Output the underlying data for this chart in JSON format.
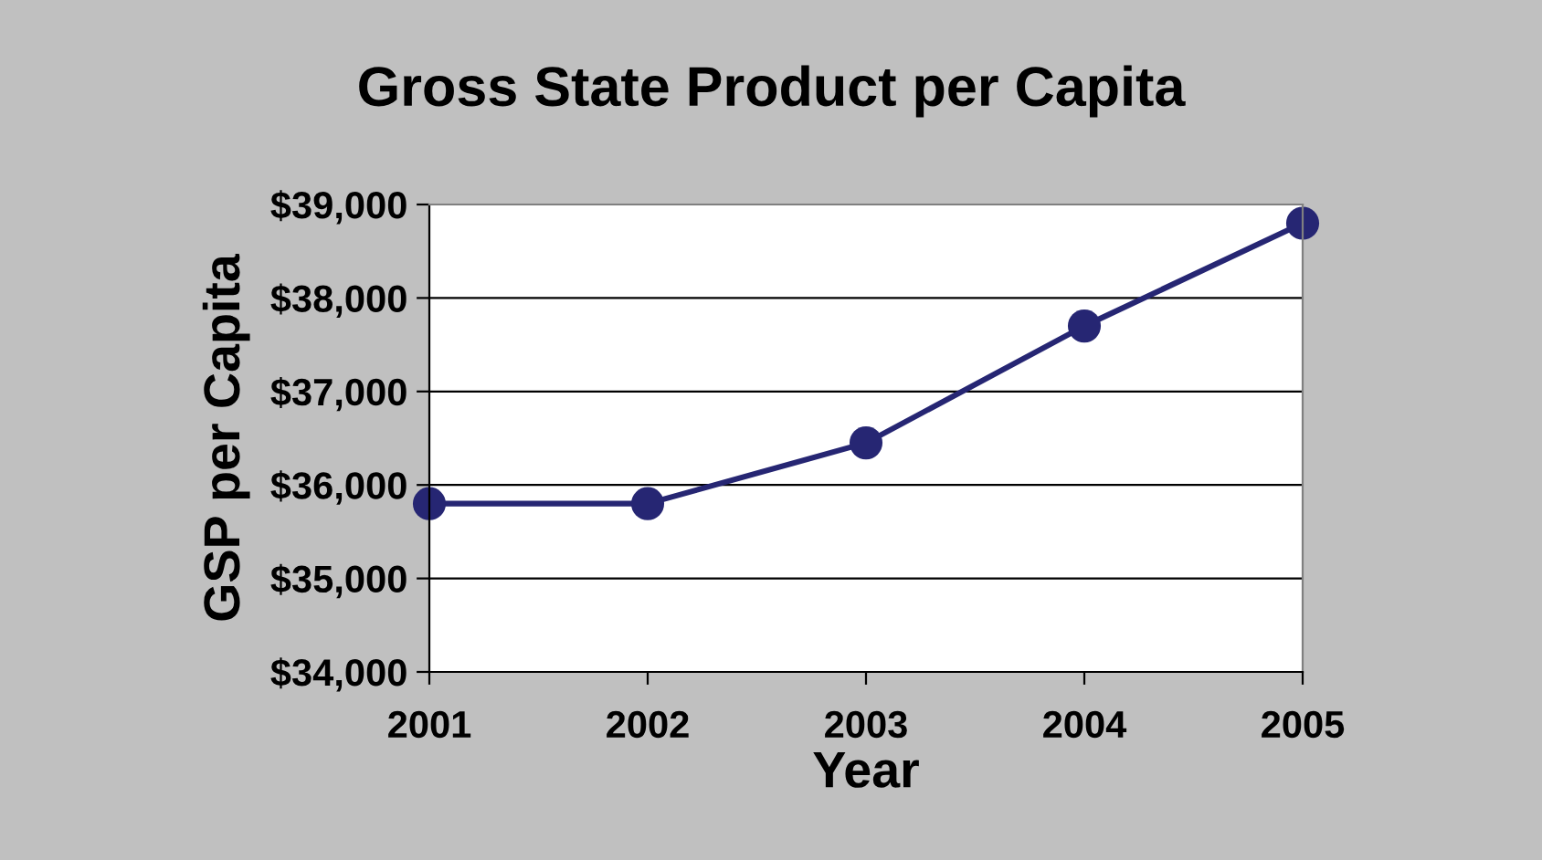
{
  "chart_data": {
    "type": "line",
    "title": "Gross State Product per Capita",
    "xlabel": "Year",
    "ylabel": "GSP per Capita",
    "categories": [
      "2001",
      "2002",
      "2003",
      "2004",
      "2005"
    ],
    "series": [
      {
        "color": "#262673",
        "values": [
          35800,
          35800,
          36450,
          37700,
          38800
        ]
      }
    ],
    "ylim": [
      34000,
      39000
    ],
    "yticks": [
      {
        "value": 34000,
        "label": "$34,000"
      },
      {
        "value": 35000,
        "label": "$35,000"
      },
      {
        "value": 36000,
        "label": "$36,000"
      },
      {
        "value": 37000,
        "label": "$37,000"
      },
      {
        "value": 38000,
        "label": "$38,000"
      },
      {
        "value": 39000,
        "label": "$39,000"
      }
    ],
    "grid": "y",
    "marker": "circle",
    "line_style": "solid"
  }
}
